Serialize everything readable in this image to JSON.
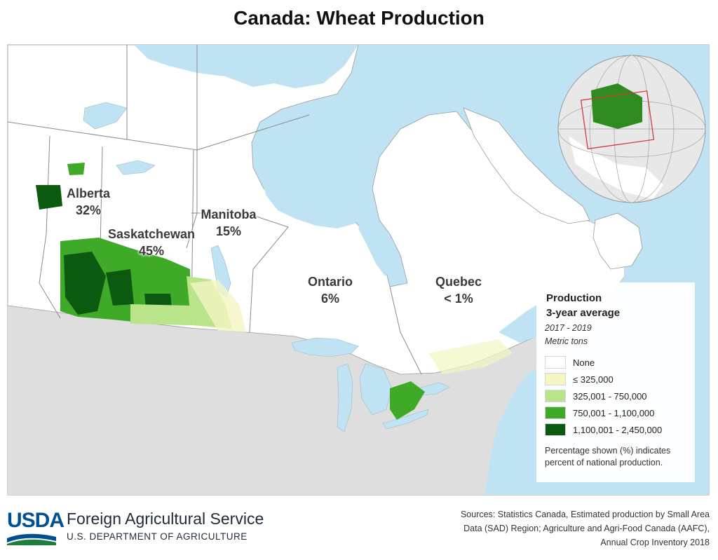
{
  "title": "Canada: Wheat Production",
  "provinces": [
    {
      "name": "Alberta",
      "share": "32%"
    },
    {
      "name": "Saskatchewan",
      "share": "45%"
    },
    {
      "name": "Manitoba",
      "share": "15%"
    },
    {
      "name": "Ontario",
      "share": "6%"
    },
    {
      "name": "Quebec",
      "share": "< 1%"
    }
  ],
  "legend": {
    "title_line1": "Production",
    "title_line2": "3-year average",
    "period": "2017 - 2019",
    "unit": "Metric tons",
    "items": [
      {
        "label": "None",
        "color": "#ffffff"
      },
      {
        "label": "≤ 325,000",
        "color": "#f4f5c2"
      },
      {
        "label": "325,001 - 750,000",
        "color": "#b9e48a"
      },
      {
        "label": "750,001 - 1,100,000",
        "color": "#3faa28"
      },
      {
        "label": "1,100,001 - 2,450,000",
        "color": "#0b5a10"
      }
    ],
    "note": "Percentage shown (%) indicates percent of national production."
  },
  "colors": {
    "water": "#bfe3f3",
    "land": "#ffffff",
    "us_land": "#dedede",
    "border": "#8a8a8a"
  },
  "footer": {
    "logo_text": "USDA",
    "agency": "Foreign Agricultural Service",
    "department": "U.S. DEPARTMENT OF AGRICULTURE",
    "sources": "Sources: Statistics Canada, Estimated production by Small Area Data (SAD) Region; Agriculture and Agri-Food Canada (AAFC), Annual Crop Inventory 2018"
  }
}
